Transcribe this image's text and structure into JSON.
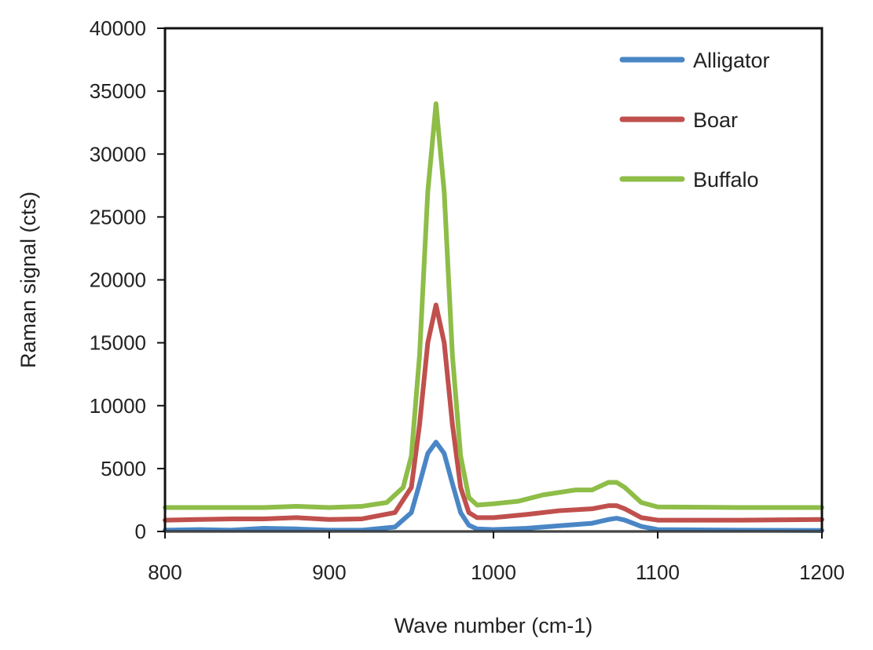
{
  "chart_data": {
    "type": "line",
    "xlabel": "Wave number (cm-1)",
    "ylabel": "Raman signal (cts)",
    "xlim": [
      800,
      1200
    ],
    "ylim": [
      0,
      40000
    ],
    "x_ticks": [
      800,
      900,
      1000,
      1100,
      1200
    ],
    "y_ticks": [
      0,
      5000,
      10000,
      15000,
      20000,
      25000,
      30000,
      35000,
      40000
    ],
    "grid": false,
    "legend_position": "top-right",
    "series": [
      {
        "name": "Alligator",
        "color": "#4a86c5",
        "points": [
          [
            800,
            100
          ],
          [
            820,
            150
          ],
          [
            840,
            100
          ],
          [
            860,
            250
          ],
          [
            880,
            200
          ],
          [
            900,
            100
          ],
          [
            920,
            100
          ],
          [
            940,
            350
          ],
          [
            950,
            1500
          ],
          [
            955,
            3800
          ],
          [
            960,
            6200
          ],
          [
            965,
            7100
          ],
          [
            970,
            6200
          ],
          [
            975,
            3800
          ],
          [
            980,
            1500
          ],
          [
            985,
            500
          ],
          [
            990,
            200
          ],
          [
            1000,
            150
          ],
          [
            1020,
            250
          ],
          [
            1040,
            450
          ],
          [
            1060,
            650
          ],
          [
            1070,
            950
          ],
          [
            1075,
            1050
          ],
          [
            1080,
            900
          ],
          [
            1090,
            400
          ],
          [
            1100,
            150
          ],
          [
            1150,
            100
          ],
          [
            1200,
            80
          ]
        ]
      },
      {
        "name": "Boar",
        "color": "#c0504d",
        "points": [
          [
            800,
            900
          ],
          [
            820,
            950
          ],
          [
            840,
            1000
          ],
          [
            860,
            1000
          ],
          [
            880,
            1100
          ],
          [
            900,
            950
          ],
          [
            920,
            1000
          ],
          [
            940,
            1500
          ],
          [
            950,
            3500
          ],
          [
            955,
            8500
          ],
          [
            960,
            15000
          ],
          [
            965,
            18000
          ],
          [
            970,
            15000
          ],
          [
            975,
            8500
          ],
          [
            980,
            3500
          ],
          [
            985,
            1500
          ],
          [
            990,
            1100
          ],
          [
            1000,
            1100
          ],
          [
            1020,
            1350
          ],
          [
            1040,
            1650
          ],
          [
            1060,
            1800
          ],
          [
            1070,
            2050
          ],
          [
            1075,
            2050
          ],
          [
            1080,
            1800
          ],
          [
            1090,
            1100
          ],
          [
            1100,
            900
          ],
          [
            1150,
            900
          ],
          [
            1200,
            950
          ]
        ]
      },
      {
        "name": "Buffalo",
        "color": "#8ebd48",
        "points": [
          [
            800,
            1900
          ],
          [
            820,
            1900
          ],
          [
            840,
            1900
          ],
          [
            860,
            1900
          ],
          [
            880,
            2000
          ],
          [
            900,
            1900
          ],
          [
            920,
            2000
          ],
          [
            935,
            2300
          ],
          [
            945,
            3500
          ],
          [
            950,
            6000
          ],
          [
            955,
            14000
          ],
          [
            960,
            27000
          ],
          [
            965,
            34000
          ],
          [
            970,
            27000
          ],
          [
            975,
            14000
          ],
          [
            980,
            6000
          ],
          [
            985,
            2700
          ],
          [
            990,
            2100
          ],
          [
            1000,
            2200
          ],
          [
            1015,
            2400
          ],
          [
            1030,
            2900
          ],
          [
            1045,
            3200
          ],
          [
            1050,
            3300
          ],
          [
            1060,
            3300
          ],
          [
            1070,
            3900
          ],
          [
            1075,
            3900
          ],
          [
            1080,
            3500
          ],
          [
            1090,
            2300
          ],
          [
            1100,
            1950
          ],
          [
            1150,
            1900
          ],
          [
            1200,
            1900
          ]
        ]
      }
    ]
  }
}
